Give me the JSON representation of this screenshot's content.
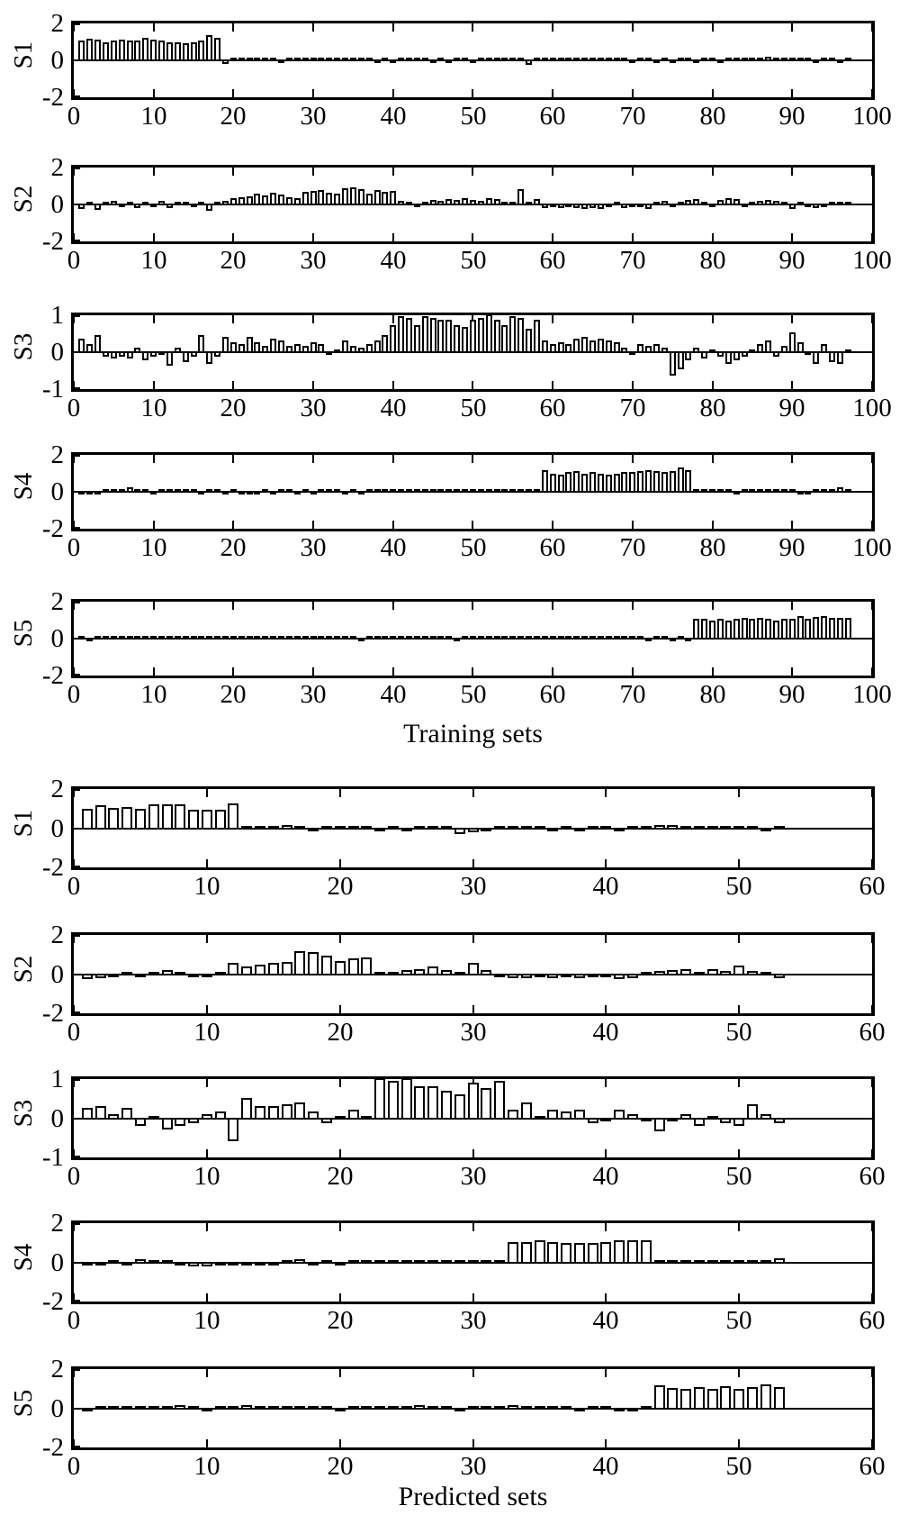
{
  "figure": {
    "background": "#ffffff",
    "bar_fill": "#ffffff",
    "bar_stroke": "#000000",
    "axis_color": "#000000"
  },
  "chart_data": [
    {
      "type": "bar",
      "title": "Training sets",
      "xlabel": "Training sets",
      "xlim": [
        0,
        100
      ],
      "xticks": [
        0,
        10,
        20,
        30,
        40,
        50,
        60,
        70,
        80,
        90,
        100
      ],
      "x_note": "bars at integer x = 1..97, bar width 0.8, white fill black outline, grid off",
      "subplots": [
        {
          "ylabel": "S1",
          "ylim": [
            -2,
            2
          ],
          "yticks": [
            2,
            0,
            -2
          ],
          "values": [
            1.0,
            1.1,
            1.05,
            0.95,
            1.0,
            1.05,
            1.0,
            1.0,
            1.15,
            1.05,
            1.0,
            0.95,
            0.95,
            0.9,
            0.95,
            1.0,
            1.3,
            1.15,
            -0.15,
            0.05,
            0.06,
            0.05,
            0.04,
            0.05,
            0.06,
            -0.1,
            0.05,
            0.06,
            0.05,
            0.04,
            0.03,
            0.04,
            0.03,
            0.04,
            0.05,
            0.04,
            0.03,
            -0.08,
            0.04,
            -0.12,
            0.05,
            0.08,
            0.04,
            0.03,
            -0.1,
            0.04,
            -0.12,
            0.03,
            0.04,
            -0.06,
            0.05,
            0.04,
            0.05,
            0.04,
            0.03,
            0.05,
            -0.2,
            0.04,
            0.05,
            0.06,
            0.04,
            0.03,
            0.06,
            0.04,
            0.03,
            0.04,
            0.05,
            0.03,
            0.04,
            -0.06,
            0.04,
            0.05,
            -0.08,
            0.04,
            -0.1,
            0.03,
            0.04,
            -0.08,
            0.04,
            0.05,
            -0.06,
            0.04,
            0.05,
            0.04,
            0.1,
            0.06,
            0.15,
            0.08,
            0.12,
            0.06,
            0.05,
            0.04,
            -0.06,
            0.05,
            0.04,
            -0.12,
            0.04
          ]
        },
        {
          "ylabel": "S2",
          "ylim": [
            -2,
            2
          ],
          "yticks": [
            2,
            0,
            -2
          ],
          "values": [
            -0.2,
            0.05,
            -0.25,
            0.1,
            0.15,
            -0.05,
            0.05,
            -0.15,
            0.1,
            -0.1,
            0.15,
            -0.15,
            0.1,
            0.05,
            -0.05,
            0.03,
            -0.3,
            0.05,
            0.15,
            0.3,
            0.35,
            0.4,
            0.55,
            0.45,
            0.6,
            0.5,
            0.35,
            0.3,
            0.65,
            0.7,
            0.75,
            0.6,
            0.55,
            0.85,
            0.9,
            0.8,
            0.55,
            0.75,
            0.65,
            0.7,
            0.15,
            0.05,
            -0.05,
            0.1,
            0.2,
            0.15,
            0.25,
            0.2,
            0.3,
            0.2,
            0.15,
            0.3,
            0.25,
            0.1,
            0.05,
            0.8,
            0.1,
            0.25,
            -0.15,
            -0.1,
            -0.15,
            -0.1,
            -0.15,
            -0.2,
            -0.15,
            -0.2,
            -0.1,
            0.1,
            -0.15,
            -0.1,
            -0.1,
            -0.2,
            0.05,
            0.15,
            -0.1,
            0.1,
            0.2,
            0.25,
            0.1,
            -0.1,
            0.2,
            0.3,
            0.25,
            -0.05,
            0.1,
            0.15,
            0.2,
            0.15,
            0.1,
            -0.2,
            0.05,
            -0.1,
            -0.15,
            -0.1,
            0.05,
            0.1,
            0.05
          ]
        },
        {
          "ylabel": "S3",
          "ylim": [
            -1,
            1
          ],
          "yticks": [
            1,
            0,
            -1
          ],
          "values": [
            0.35,
            0.2,
            0.45,
            -0.1,
            -0.15,
            -0.1,
            -0.15,
            0.1,
            -0.2,
            -0.1,
            -0.05,
            -0.35,
            0.1,
            -0.25,
            -0.1,
            0.45,
            -0.3,
            -0.1,
            0.4,
            0.25,
            0.2,
            0.4,
            0.25,
            0.15,
            0.35,
            0.3,
            0.15,
            0.2,
            0.15,
            0.25,
            0.2,
            -0.05,
            0.05,
            0.3,
            0.15,
            0.1,
            0.2,
            0.3,
            0.45,
            0.7,
            0.95,
            0.9,
            0.7,
            0.95,
            0.9,
            0.85,
            0.85,
            0.7,
            0.65,
            0.85,
            0.9,
            1.0,
            0.85,
            0.7,
            0.95,
            0.9,
            0.6,
            0.85,
            0.3,
            0.2,
            0.25,
            0.2,
            0.35,
            0.4,
            0.3,
            0.35,
            0.3,
            0.25,
            0.1,
            -0.05,
            0.2,
            0.15,
            0.2,
            0.1,
            -0.6,
            -0.45,
            -0.2,
            0.1,
            -0.15,
            0.05,
            -0.1,
            -0.3,
            -0.2,
            -0.1,
            0.05,
            0.2,
            0.3,
            -0.1,
            0.15,
            0.5,
            0.25,
            -0.05,
            -0.3,
            0.2,
            -0.25,
            -0.3,
            0.05
          ]
        },
        {
          "ylabel": "S4",
          "ylim": [
            -2,
            2
          ],
          "yticks": [
            2,
            0,
            -2
          ],
          "values": [
            -0.08,
            -0.1,
            -0.06,
            0.04,
            0.05,
            0.04,
            0.18,
            0.12,
            0.1,
            -0.08,
            0.05,
            0.06,
            0.05,
            0.04,
            0.05,
            -0.06,
            0.05,
            0.04,
            -0.05,
            0.04,
            -0.08,
            -0.06,
            -0.05,
            0.04,
            -0.06,
            0.05,
            0.04,
            -0.08,
            0.04,
            -0.08,
            0.12,
            0.05,
            0.04,
            -0.06,
            0.04,
            -0.1,
            0.05,
            0.04,
            0.1,
            0.12,
            0.1,
            0.05,
            0.04,
            0.05,
            0.04,
            0.05,
            0.06,
            0.1,
            0.08,
            0.1,
            0.08,
            0.05,
            0.12,
            0.1,
            0.12,
            0.05,
            0.04,
            0.05,
            1.1,
            0.95,
            0.9,
            1.0,
            1.05,
            0.95,
            1.0,
            0.95,
            0.9,
            0.95,
            1.0,
            1.0,
            1.05,
            1.1,
            1.05,
            1.0,
            1.05,
            1.25,
            1.1,
            0.1,
            0.08,
            0.1,
            0.04,
            0.03,
            -0.05,
            0.04,
            0.03,
            0.04,
            0.05,
            0.03,
            0.04,
            0.03,
            -0.08,
            -0.06,
            0.04,
            0.03,
            0.04,
            0.2,
            0.04
          ]
        },
        {
          "ylabel": "S5",
          "ylim": [
            -2,
            2
          ],
          "yticks": [
            2,
            0,
            -2
          ],
          "values": [
            0.04,
            -0.08,
            0.06,
            0.05,
            0.06,
            0.05,
            0.06,
            0.05,
            0.06,
            0.05,
            0.06,
            0.05,
            0.08,
            0.12,
            0.1,
            0.05,
            0.04,
            0.05,
            0.1,
            0.08,
            0.1,
            0.12,
            0.08,
            0.06,
            0.05,
            0.04,
            0.05,
            0.06,
            0.08,
            0.06,
            0.05,
            0.04,
            0.06,
            0.05,
            0.04,
            -0.06,
            0.04,
            0.05,
            0.06,
            0.08,
            0.06,
            0.08,
            0.06,
            0.05,
            0.06,
            0.05,
            0.04,
            -0.06,
            0.04,
            0.05,
            0.04,
            0.05,
            0.06,
            0.05,
            0.04,
            0.06,
            0.05,
            0.06,
            0.1,
            0.12,
            0.1,
            0.12,
            0.1,
            0.08,
            0.06,
            0.05,
            0.04,
            0.05,
            0.04,
            0.06,
            0.04,
            -0.08,
            0.04,
            0.03,
            -0.06,
            0.03,
            -0.04,
            1.0,
            1.0,
            0.95,
            1.0,
            0.95,
            1.0,
            1.05,
            1.0,
            1.05,
            1.0,
            0.95,
            1.0,
            1.0,
            1.15,
            1.0,
            1.1,
            1.15,
            1.05,
            1.05,
            1.05
          ]
        }
      ]
    },
    {
      "type": "bar",
      "title": "Predicted sets",
      "xlabel": "Predicted sets",
      "xlim": [
        0,
        60
      ],
      "xticks": [
        0,
        10,
        20,
        30,
        40,
        50,
        60
      ],
      "x_note": "bars at integer x = 1..53, bar width 0.8, white fill black outline, grid off",
      "subplots": [
        {
          "ylabel": "S1",
          "ylim": [
            -2,
            2
          ],
          "yticks": [
            2,
            0,
            -2
          ],
          "values": [
            0.95,
            1.15,
            1.0,
            1.05,
            0.95,
            1.2,
            1.2,
            1.2,
            0.9,
            0.9,
            0.9,
            1.25,
            0.05,
            0.08,
            0.08,
            0.15,
            0.1,
            -0.08,
            0.04,
            0.08,
            0.1,
            0.08,
            -0.06,
            0.04,
            -0.08,
            0.04,
            0.1,
            0.06,
            -0.25,
            -0.12,
            -0.06,
            0.05,
            0.1,
            0.04,
            0.03,
            -0.08,
            0.04,
            -0.06,
            0.04,
            0.05,
            -0.08,
            0.04,
            0.06,
            0.15,
            0.12,
            0.04,
            0.03,
            0.08,
            0.06,
            0.08,
            0.04,
            -0.08,
            0.1
          ]
        },
        {
          "ylabel": "S2",
          "ylim": [
            -2,
            2
          ],
          "yticks": [
            2,
            0,
            -2
          ],
          "values": [
            -0.2,
            -0.15,
            -0.1,
            0.1,
            -0.05,
            0.05,
            0.2,
            0.1,
            -0.05,
            -0.05,
            0.05,
            0.55,
            0.35,
            0.45,
            0.55,
            0.6,
            1.15,
            1.1,
            0.9,
            0.65,
            0.8,
            0.85,
            0.05,
            0.1,
            0.2,
            0.25,
            0.35,
            0.2,
            0.1,
            0.55,
            0.2,
            -0.1,
            -0.15,
            -0.15,
            -0.05,
            -0.15,
            -0.05,
            -0.15,
            -0.05,
            -0.1,
            -0.2,
            -0.15,
            0.05,
            0.15,
            0.2,
            0.25,
            0.1,
            0.25,
            0.15,
            0.4,
            0.15,
            0.1,
            -0.15
          ]
        },
        {
          "ylabel": "S3",
          "ylim": [
            -1,
            1
          ],
          "yticks": [
            1,
            0,
            -1
          ],
          "values": [
            0.25,
            0.3,
            0.1,
            0.25,
            -0.15,
            0.05,
            -0.25,
            -0.15,
            -0.1,
            0.1,
            0.15,
            -0.55,
            0.5,
            0.3,
            0.3,
            0.35,
            0.4,
            0.15,
            -0.1,
            0.05,
            0.2,
            0.05,
            1.0,
            0.95,
            1.0,
            0.8,
            0.8,
            0.7,
            0.6,
            0.9,
            0.75,
            0.95,
            0.2,
            0.4,
            0.05,
            0.2,
            0.15,
            0.2,
            -0.1,
            -0.05,
            0.2,
            0.1,
            -0.05,
            -0.3,
            -0.05,
            0.1,
            -0.15,
            0.05,
            -0.1,
            -0.15,
            0.35,
            0.1,
            -0.1
          ]
        },
        {
          "ylabel": "S4",
          "ylim": [
            -2,
            2
          ],
          "yticks": [
            2,
            0,
            -2
          ],
          "values": [
            -0.05,
            -0.08,
            0.03,
            -0.05,
            0.12,
            0.08,
            0.1,
            -0.03,
            -0.15,
            -0.12,
            -0.05,
            -0.08,
            -0.06,
            -0.08,
            -0.05,
            0.03,
            0.12,
            -0.03,
            0.08,
            -0.08,
            0.05,
            0.1,
            0.1,
            0.05,
            0.05,
            0.06,
            0.08,
            0.1,
            0.1,
            0.08,
            0.05,
            0.05,
            1.0,
            1.0,
            1.1,
            1.0,
            0.95,
            0.95,
            0.95,
            1.0,
            1.1,
            1.1,
            1.1,
            0.1,
            0.08,
            0.05,
            0.1,
            0.08,
            0.05,
            0.1,
            0.1,
            0.05,
            0.2
          ]
        },
        {
          "ylabel": "S5",
          "ylim": [
            -2,
            2
          ],
          "yticks": [
            2,
            0,
            -2
          ],
          "values": [
            -0.06,
            0.08,
            0.05,
            0.03,
            0.04,
            0.03,
            0.1,
            0.12,
            0.1,
            -0.05,
            0.04,
            0.08,
            0.12,
            0.06,
            0.08,
            0.06,
            0.08,
            0.06,
            0.04,
            -0.05,
            0.03,
            0.1,
            0.08,
            0.05,
            0.1,
            0.12,
            0.1,
            0.04,
            -0.1,
            0.05,
            0.04,
            0.08,
            0.12,
            0.08,
            0.04,
            0.03,
            0.04,
            -0.05,
            0.03,
            0.04,
            -0.06,
            -0.05,
            0.03,
            1.15,
            1.0,
            0.95,
            1.05,
            0.95,
            1.1,
            0.95,
            1.05,
            1.2,
            1.05
          ]
        }
      ]
    }
  ]
}
